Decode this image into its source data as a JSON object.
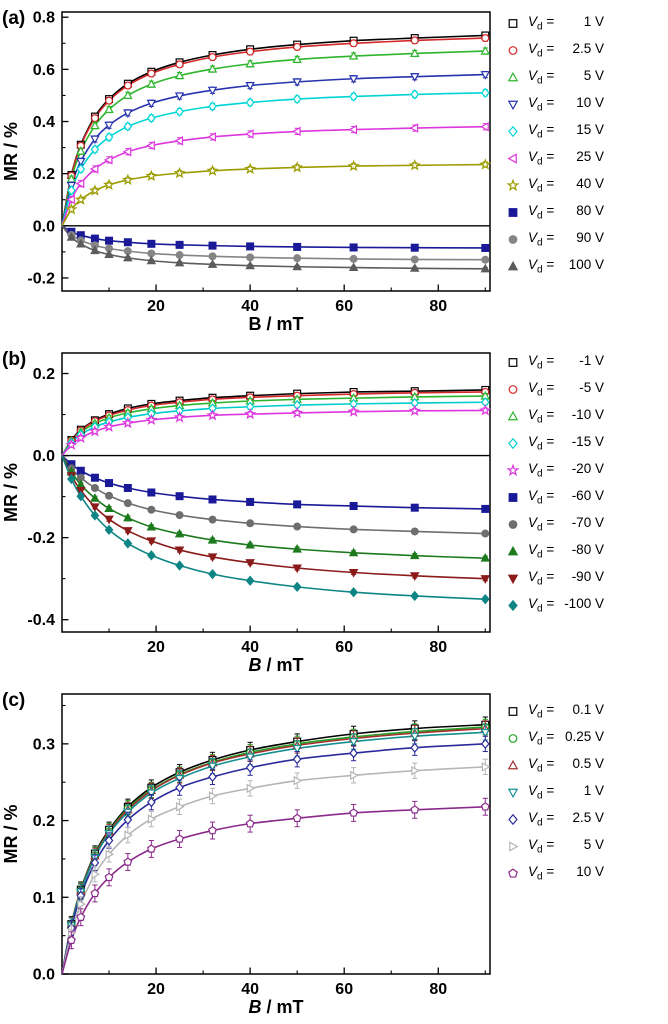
{
  "chart_data": [
    {
      "type": "line",
      "panel_label": "(a)",
      "xlabel": "B / mT",
      "xlabel_italic": false,
      "ylabel": "MR / %",
      "xlim": [
        0,
        91
      ],
      "ylim": [
        -0.25,
        0.82
      ],
      "xticks": [
        20,
        40,
        60,
        80
      ],
      "yticks": [
        -0.2,
        0.0,
        0.2,
        0.4,
        0.6,
        0.8
      ],
      "xminor": 10,
      "yminor": 0.1,
      "zero_line": true,
      "grid": false,
      "legend_position": "right",
      "legend_var": "V",
      "legend_sub": "d",
      "legend_eq": "=",
      "x": [
        0,
        2,
        4,
        7,
        10,
        14,
        19,
        25,
        32,
        40,
        50,
        62,
        75,
        90
      ],
      "series": [
        {
          "name": "Vd = 1 V",
          "value": "1 V",
          "marker": "square",
          "open": true,
          "color": "#000000",
          "yerr": 0.012,
          "values": [
            0,
            0.195,
            0.311,
            0.419,
            0.486,
            0.545,
            0.591,
            0.627,
            0.655,
            0.677,
            0.695,
            0.71,
            0.72,
            0.73
          ]
        },
        {
          "name": "Vd = 2.5 V",
          "value": "2.5 V",
          "marker": "circle",
          "open": true,
          "color": "#d42727",
          "yerr": 0.012,
          "values": [
            0,
            0.192,
            0.307,
            0.413,
            0.48,
            0.538,
            0.584,
            0.619,
            0.647,
            0.668,
            0.686,
            0.7,
            0.711,
            0.72
          ]
        },
        {
          "name": "Vd = 5 V",
          "value": "5 V",
          "marker": "triangle-up",
          "open": true,
          "color": "#2db52d",
          "yerr": 0.012,
          "values": [
            0,
            0.179,
            0.286,
            0.384,
            0.446,
            0.5,
            0.543,
            0.576,
            0.601,
            0.621,
            0.638,
            0.651,
            0.661,
            0.67
          ]
        },
        {
          "name": "Vd = 10 V",
          "value": "10 V",
          "marker": "triangle-down",
          "open": true,
          "color": "#2633ad",
          "yerr": 0.012,
          "values": [
            0,
            0.155,
            0.247,
            0.333,
            0.386,
            0.433,
            0.47,
            0.498,
            0.52,
            0.538,
            0.552,
            0.564,
            0.572,
            0.58
          ]
        },
        {
          "name": "Vd = 15 V",
          "value": "15 V",
          "marker": "diamond",
          "open": true,
          "color": "#00d5d5",
          "yerr": 0.012,
          "values": [
            0,
            0.136,
            0.218,
            0.293,
            0.34,
            0.381,
            0.413,
            0.438,
            0.458,
            0.473,
            0.486,
            0.496,
            0.504,
            0.51
          ]
        },
        {
          "name": "Vd = 25 V",
          "value": "25 V",
          "marker": "triangle-left",
          "open": true,
          "color": "#dd35dd",
          "yerr": 0.012,
          "values": [
            0,
            0.101,
            0.162,
            0.218,
            0.253,
            0.284,
            0.308,
            0.326,
            0.341,
            0.352,
            0.362,
            0.369,
            0.375,
            0.38
          ]
        },
        {
          "name": "Vd = 40 V",
          "value": "40 V",
          "marker": "star",
          "open": true,
          "color": "#9c9c00",
          "yerr": 0.01,
          "values": [
            0,
            0.063,
            0.1,
            0.135,
            0.157,
            0.176,
            0.191,
            0.202,
            0.211,
            0.218,
            0.224,
            0.229,
            0.232,
            0.235
          ]
        },
        {
          "name": "Vd = 80 V",
          "value": "80 V",
          "marker": "square",
          "open": false,
          "color": "#1a1a99",
          "yerr": 0.005,
          "values": [
            0,
            -0.023,
            -0.036,
            -0.049,
            -0.057,
            -0.063,
            -0.069,
            -0.073,
            -0.076,
            -0.079,
            -0.081,
            -0.083,
            -0.084,
            -0.085
          ]
        },
        {
          "name": "Vd = 90 V",
          "value": "90 V",
          "marker": "circle",
          "open": false,
          "color": "#858585",
          "yerr": 0.005,
          "values": [
            0,
            -0.035,
            -0.056,
            -0.075,
            -0.087,
            -0.097,
            -0.106,
            -0.112,
            -0.117,
            -0.121,
            -0.124,
            -0.127,
            -0.129,
            -0.13
          ]
        },
        {
          "name": "Vd = 100 V",
          "value": "100 V",
          "marker": "triangle-up",
          "open": false,
          "color": "#5c5c5c",
          "yerr": 0.005,
          "values": [
            0,
            -0.044,
            -0.07,
            -0.095,
            -0.11,
            -0.123,
            -0.134,
            -0.142,
            -0.148,
            -0.153,
            -0.157,
            -0.16,
            -0.163,
            -0.165
          ]
        }
      ]
    },
    {
      "type": "line",
      "panel_label": "(b)",
      "xlabel": "B / mT",
      "xlabel_italic": true,
      "ylabel": "MR / %",
      "xlim": [
        0,
        91
      ],
      "ylim": [
        -0.43,
        0.25
      ],
      "xticks": [
        20,
        40,
        60,
        80
      ],
      "yticks": [
        -0.4,
        -0.2,
        0.0,
        0.2
      ],
      "xminor": 10,
      "yminor": 0.1,
      "zero_line": true,
      "grid": false,
      "legend_position": "right",
      "legend_var": "V",
      "legend_sub": "d",
      "legend_eq": "=",
      "x": [
        0,
        2,
        4,
        7,
        10,
        14,
        19,
        25,
        32,
        40,
        50,
        62,
        75,
        90
      ],
      "series": [
        {
          "name": "Vd = -1 V",
          "value": "-1 V",
          "marker": "square",
          "open": true,
          "color": "#000000",
          "yerr": 0.006,
          "values": [
            0,
            0.038,
            0.063,
            0.086,
            0.101,
            0.115,
            0.126,
            0.134,
            0.141,
            0.146,
            0.151,
            0.155,
            0.157,
            0.16
          ]
        },
        {
          "name": "Vd = -5 V",
          "value": "-5 V",
          "marker": "circle",
          "open": true,
          "color": "#d42727",
          "yerr": 0.006,
          "values": [
            0,
            0.037,
            0.061,
            0.084,
            0.098,
            0.111,
            0.122,
            0.13,
            0.137,
            0.142,
            0.146,
            0.15,
            0.153,
            0.155
          ]
        },
        {
          "name": "Vd = -10 V",
          "value": "-10 V",
          "marker": "triangle-up",
          "open": true,
          "color": "#2db52d",
          "yerr": 0.006,
          "values": [
            0,
            0.035,
            0.057,
            0.078,
            0.092,
            0.104,
            0.114,
            0.122,
            0.128,
            0.133,
            0.137,
            0.14,
            0.143,
            0.145
          ]
        },
        {
          "name": "Vd = -15 V",
          "value": "-15 V",
          "marker": "diamond",
          "open": true,
          "color": "#00cccc",
          "yerr": 0.006,
          "values": [
            0,
            0.031,
            0.051,
            0.07,
            0.082,
            0.093,
            0.102,
            0.109,
            0.115,
            0.119,
            0.123,
            0.126,
            0.128,
            0.13
          ]
        },
        {
          "name": "Vd = -20 V",
          "value": "-20 V",
          "marker": "star",
          "open": true,
          "color": "#dd35dd",
          "yerr": 0.006,
          "values": [
            0,
            0.026,
            0.043,
            0.059,
            0.07,
            0.079,
            0.087,
            0.093,
            0.098,
            0.101,
            0.104,
            0.107,
            0.109,
            0.11
          ]
        },
        {
          "name": "Vd = -60 V",
          "value": "-60 V",
          "marker": "square",
          "open": false,
          "color": "#1a1a99",
          "yerr": 0.005,
          "values": [
            0,
            -0.021,
            -0.037,
            -0.054,
            -0.067,
            -0.079,
            -0.09,
            -0.099,
            -0.107,
            -0.113,
            -0.119,
            -0.123,
            -0.127,
            -0.13
          ]
        },
        {
          "name": "Vd = -70 V",
          "value": "-70 V",
          "marker": "circle",
          "open": false,
          "color": "#6e6e6e",
          "yerr": 0.005,
          "values": [
            0,
            -0.031,
            -0.054,
            -0.079,
            -0.098,
            -0.116,
            -0.132,
            -0.145,
            -0.156,
            -0.165,
            -0.173,
            -0.18,
            -0.185,
            -0.19
          ]
        },
        {
          "name": "Vd = -80 V",
          "value": "-80 V",
          "marker": "triangle-up",
          "open": false,
          "color": "#1d7a1d",
          "yerr": 0.005,
          "values": [
            0,
            -0.04,
            -0.071,
            -0.104,
            -0.129,
            -0.152,
            -0.174,
            -0.191,
            -0.206,
            -0.218,
            -0.228,
            -0.237,
            -0.244,
            -0.25
          ]
        },
        {
          "name": "Vd = -90 V",
          "value": "-90 V",
          "marker": "triangle-down",
          "open": false,
          "color": "#8b1a1a",
          "yerr": 0.005,
          "values": [
            0,
            -0.049,
            -0.085,
            -0.125,
            -0.155,
            -0.183,
            -0.208,
            -0.23,
            -0.247,
            -0.261,
            -0.274,
            -0.285,
            -0.293,
            -0.3
          ]
        },
        {
          "name": "Vd = -100 V",
          "value": "-100 V",
          "marker": "diamond",
          "open": false,
          "color": "#0e8585",
          "yerr": 0.005,
          "values": [
            0,
            -0.057,
            -0.099,
            -0.146,
            -0.181,
            -0.214,
            -0.243,
            -0.268,
            -0.289,
            -0.305,
            -0.32,
            -0.333,
            -0.342,
            -0.35
          ]
        }
      ]
    },
    {
      "type": "line",
      "panel_label": "(c)",
      "xlabel": "B / mT",
      "xlabel_italic": true,
      "ylabel": "MR / %",
      "xlim": [
        0,
        91
      ],
      "ylim": [
        0,
        0.365
      ],
      "xticks": [
        20,
        40,
        60,
        80
      ],
      "yticks": [
        0.0,
        0.1,
        0.2,
        0.3
      ],
      "xminor": 10,
      "yminor": 0.05,
      "zero_line": false,
      "grid": false,
      "legend_position": "right",
      "legend_var": "V",
      "legend_sub": "d",
      "legend_eq": "=",
      "x": [
        0,
        2,
        4,
        7,
        10,
        14,
        19,
        25,
        32,
        40,
        50,
        62,
        75,
        90
      ],
      "series": [
        {
          "name": "Vd = 0.1 V",
          "value": "0.1 V",
          "marker": "square",
          "open": true,
          "color": "#000000",
          "yerr": 0.01,
          "values": [
            0,
            0.065,
            0.11,
            0.157,
            0.188,
            0.218,
            0.243,
            0.263,
            0.279,
            0.292,
            0.303,
            0.313,
            0.32,
            0.325
          ]
        },
        {
          "name": "Vd = 0.25 V",
          "value": "0.25 V",
          "marker": "circle",
          "open": true,
          "color": "#22a022",
          "yerr": 0.01,
          "values": [
            0,
            0.064,
            0.109,
            0.155,
            0.186,
            0.216,
            0.24,
            0.26,
            0.276,
            0.289,
            0.3,
            0.309,
            0.316,
            0.322
          ]
        },
        {
          "name": "Vd = 0.5 V",
          "value": "0.5 V",
          "marker": "triangle-up",
          "open": true,
          "color": "#a33030",
          "yerr": 0.01,
          "values": [
            0,
            0.064,
            0.108,
            0.154,
            0.185,
            0.214,
            0.239,
            0.259,
            0.275,
            0.287,
            0.298,
            0.307,
            0.314,
            0.32
          ]
        },
        {
          "name": "Vd = 1 V",
          "value": "1 V",
          "marker": "triangle-down",
          "open": true,
          "color": "#159090",
          "yerr": 0.01,
          "values": [
            0,
            0.063,
            0.107,
            0.152,
            0.183,
            0.211,
            0.236,
            0.255,
            0.271,
            0.283,
            0.294,
            0.303,
            0.31,
            0.315
          ]
        },
        {
          "name": "Vd = 2.5 V",
          "value": "2.5 V",
          "marker": "diamond",
          "open": true,
          "color": "#2a2a9a",
          "yerr": 0.01,
          "values": [
            0,
            0.06,
            0.102,
            0.145,
            0.174,
            0.201,
            0.224,
            0.243,
            0.257,
            0.269,
            0.28,
            0.288,
            0.295,
            0.3
          ]
        },
        {
          "name": "Vd = 5 V",
          "value": "5 V",
          "marker": "triangle-right",
          "open": true,
          "color": "#b5b5b5",
          "yerr": 0.01,
          "values": [
            0,
            0.054,
            0.091,
            0.13,
            0.156,
            0.181,
            0.202,
            0.218,
            0.232,
            0.242,
            0.252,
            0.259,
            0.265,
            0.27
          ]
        },
        {
          "name": "Vd = 10 V",
          "value": "10 V",
          "marker": "pentagon",
          "open": true,
          "color": "#8a2a8a",
          "yerr": 0.011,
          "values": [
            0,
            0.044,
            0.074,
            0.105,
            0.126,
            0.146,
            0.163,
            0.176,
            0.187,
            0.196,
            0.203,
            0.21,
            0.214,
            0.218
          ]
        }
      ]
    }
  ]
}
